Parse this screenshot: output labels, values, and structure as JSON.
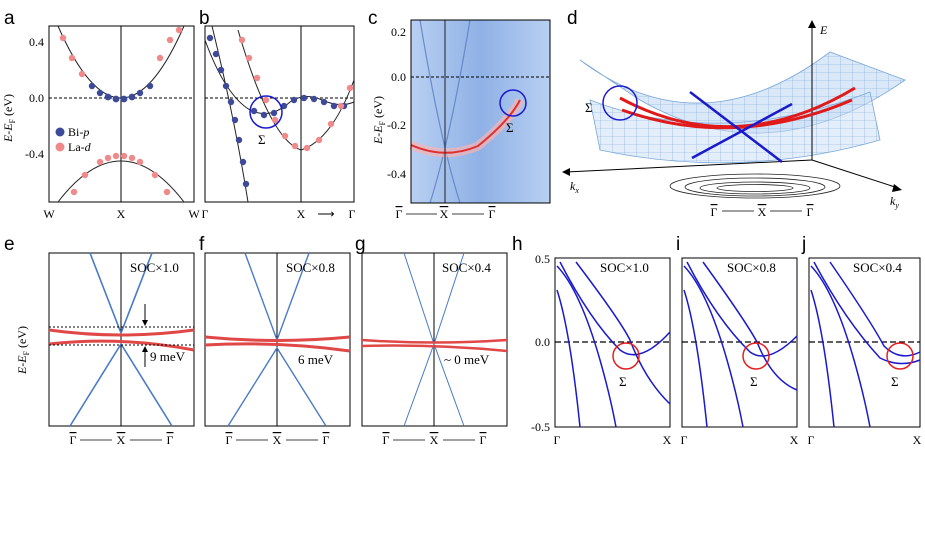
{
  "panel_letters": {
    "a": "a",
    "b": "b",
    "c": "c",
    "d": "d",
    "e": "e",
    "f": "f",
    "g": "g",
    "h": "h",
    "i": "i",
    "j": "j"
  },
  "panel_a": {
    "yticks": [
      "0.4",
      "0.0",
      "-0.4"
    ],
    "xlabels": [
      "W",
      "X",
      "W"
    ],
    "ylabel": "E-E",
    "ylabel_sub": "F",
    "ylabel_unit": " (eV)",
    "legend": {
      "bi": "Bi-",
      "bi_italic": "p",
      "la": "La-",
      "la_italic": "d"
    }
  },
  "panel_b": {
    "xlabels": [
      "Γ",
      "X",
      "Γ"
    ],
    "arrow": "⟶",
    "sigma": "Σ"
  },
  "panel_c": {
    "yticks": [
      "0.0",
      "-0.2",
      "-0.4"
    ],
    "ylabel": "E-E",
    "ylabel_sub": "F",
    "ylabel_unit": " (eV)",
    "xlabels": [
      "Γ",
      "X",
      "Γ"
    ],
    "sigma": "Σ"
  },
  "panel_d": {
    "axis_e": "E",
    "axis_kx": "k",
    "axis_kx_sub": "x",
    "axis_ky": "k",
    "axis_ky_sub": "y",
    "sigma": "Σ",
    "xlabels": [
      "Γ",
      "X",
      "Γ"
    ]
  },
  "panel_efg": {
    "ylabel": "E-E",
    "ylabel_sub": "F",
    "ylabel_unit": " (eV)",
    "e": {
      "soc": "SOC×1.0",
      "gap": "9 meV"
    },
    "f": {
      "soc": "SOC×0.8",
      "gap": "6 meV"
    },
    "g": {
      "soc": "SOC×0.4",
      "gap": "~ 0 meV"
    },
    "xlabels": [
      "Γ",
      "X",
      "Γ"
    ]
  },
  "panel_hij": {
    "yticks": [
      "0.5",
      "0.0",
      "-0.5"
    ],
    "xlabels": [
      "Γ",
      "X"
    ],
    "sigma": "Σ",
    "h": {
      "soc": "SOC×1.0"
    },
    "i": {
      "soc": "SOC×0.8"
    },
    "j": {
      "soc": "SOC×0.4"
    }
  },
  "colors": {
    "bi": "#3d4a9a",
    "la": "#f08a8a",
    "band_blue": "#1a1acc",
    "band_red": "#e01a1a",
    "arpes_bg": "#a9c4ee",
    "circle_red": "#e51e1e",
    "circle_blue": "#1a1ad0"
  }
}
